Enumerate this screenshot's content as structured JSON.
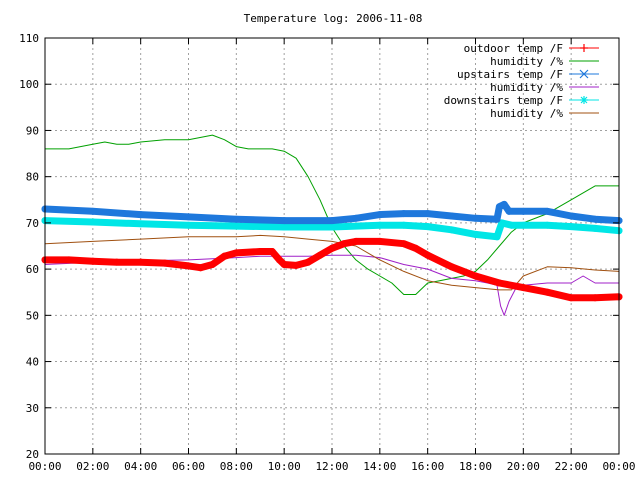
{
  "chart_data": {
    "type": "line",
    "title": "Temperature log: 2006-11-08",
    "xlabel": "",
    "ylabel": "",
    "xlim": [
      0,
      24
    ],
    "ylim": [
      20,
      110
    ],
    "grid": true,
    "legend_position": "top-right",
    "x_ticks": [
      {
        "value": 0,
        "label": "00:00"
      },
      {
        "value": 2,
        "label": "02:00"
      },
      {
        "value": 4,
        "label": "04:00"
      },
      {
        "value": 6,
        "label": "06:00"
      },
      {
        "value": 8,
        "label": "08:00"
      },
      {
        "value": 10,
        "label": "10:00"
      },
      {
        "value": 12,
        "label": "12:00"
      },
      {
        "value": 14,
        "label": "14:00"
      },
      {
        "value": 16,
        "label": "16:00"
      },
      {
        "value": 18,
        "label": "18:00"
      },
      {
        "value": 20,
        "label": "20:00"
      },
      {
        "value": 22,
        "label": "22:00"
      },
      {
        "value": 24,
        "label": "00:00"
      }
    ],
    "y_ticks": [
      20,
      30,
      40,
      50,
      60,
      70,
      80,
      90,
      100,
      110
    ],
    "series": [
      {
        "name": "outdoor temp /F",
        "color": "#ff0000",
        "marker": "plus",
        "x": [
          0,
          1,
          2,
          3,
          4,
          5,
          6,
          6.5,
          7,
          7.5,
          8,
          9,
          9.5,
          9.8,
          10,
          10.5,
          11,
          11.5,
          12,
          12.5,
          13,
          14,
          15,
          15.5,
          16,
          17,
          18,
          19,
          20,
          21,
          22,
          23,
          24
        ],
        "y": [
          62,
          62,
          61.7,
          61.5,
          61.5,
          61.3,
          60.7,
          60.3,
          61,
          62.8,
          63.5,
          63.8,
          63.8,
          62,
          61,
          60.8,
          61.5,
          63,
          64.5,
          65.5,
          66,
          66,
          65.5,
          64.5,
          63,
          60.5,
          58.5,
          57,
          56,
          55,
          53.8,
          53.8,
          54
        ]
      },
      {
        "name": "humidity /%",
        "color": "#00a000",
        "marker": "",
        "x": [
          0,
          1,
          2,
          2.5,
          3,
          3.5,
          4,
          5,
          6,
          7,
          7.5,
          8,
          8.5,
          9,
          9.5,
          10,
          10.5,
          11,
          11.5,
          12,
          12.5,
          13,
          13.5,
          14,
          14.5,
          15,
          15.5,
          16,
          16.5,
          17,
          17.5,
          18,
          18.5,
          19,
          19.5,
          20,
          21,
          22,
          23,
          24
        ],
        "y": [
          86,
          86,
          87,
          87.5,
          87,
          87,
          87.5,
          88,
          88,
          89,
          88,
          86.5,
          86,
          86,
          86,
          85.5,
          84,
          80,
          75,
          69,
          65,
          62,
          60,
          58.5,
          57,
          54.5,
          54.5,
          57,
          57.5,
          58,
          58.5,
          59.5,
          62,
          65,
          68,
          70,
          72,
          75,
          78,
          78
        ]
      },
      {
        "name": "upstairs temp /F",
        "color": "#1e78dc",
        "marker": "x",
        "x": [
          0,
          2,
          4,
          6,
          8,
          10,
          12,
          13,
          14,
          15,
          16,
          17,
          18,
          18.9,
          19,
          19.2,
          19.4,
          20,
          21,
          22,
          23,
          24
        ],
        "y": [
          73,
          72.5,
          71.8,
          71.3,
          70.8,
          70.5,
          70.5,
          71,
          71.8,
          72,
          72,
          71.5,
          71,
          70.8,
          73.5,
          74,
          72.5,
          72.5,
          72.5,
          71.5,
          70.8,
          70.5
        ]
      },
      {
        "name": "humidity /%",
        "color": "#a020c8",
        "marker": "",
        "x": [
          0,
          2,
          4,
          6,
          8,
          9,
          10,
          11,
          12,
          13,
          14,
          15,
          16,
          17,
          18,
          18.5,
          18.9,
          19.05,
          19.2,
          19.4,
          19.7,
          20,
          21,
          22,
          22.5,
          23,
          24
        ],
        "y": [
          61,
          61.5,
          61.8,
          62,
          62.5,
          62.8,
          62.8,
          62.8,
          63,
          63,
          62.5,
          61,
          60,
          58,
          57.5,
          57,
          56.5,
          52,
          50,
          53,
          56,
          56.5,
          57,
          57,
          58.5,
          57,
          57
        ]
      },
      {
        "name": "downstairs temp /F",
        "color": "#00e6e6",
        "marker": "star",
        "x": [
          0,
          2,
          4,
          6,
          8,
          10,
          12,
          14,
          15,
          16,
          17,
          18,
          18.9,
          19.1,
          19.5,
          20,
          21,
          22,
          23,
          24
        ],
        "y": [
          70.5,
          70.2,
          69.8,
          69.5,
          69.3,
          69.1,
          69.1,
          69.5,
          69.5,
          69.2,
          68.5,
          67.5,
          67,
          70,
          69.5,
          69.5,
          69.5,
          69.2,
          68.8,
          68.3
        ]
      },
      {
        "name": "humidity /%",
        "color": "#a05010",
        "marker": "",
        "x": [
          0,
          2,
          4,
          6,
          8,
          9,
          10,
          11,
          12,
          12.5,
          13,
          14,
          15,
          16,
          17,
          18,
          19,
          19.5,
          20,
          21,
          22,
          23,
          24
        ],
        "y": [
          65.5,
          66,
          66.5,
          67,
          67,
          67.3,
          67,
          66.5,
          66,
          65.5,
          65,
          62,
          59.5,
          57.5,
          56.5,
          56,
          55.5,
          55.5,
          58.5,
          60.5,
          60.3,
          59.8,
          59.5
        ]
      }
    ]
  }
}
